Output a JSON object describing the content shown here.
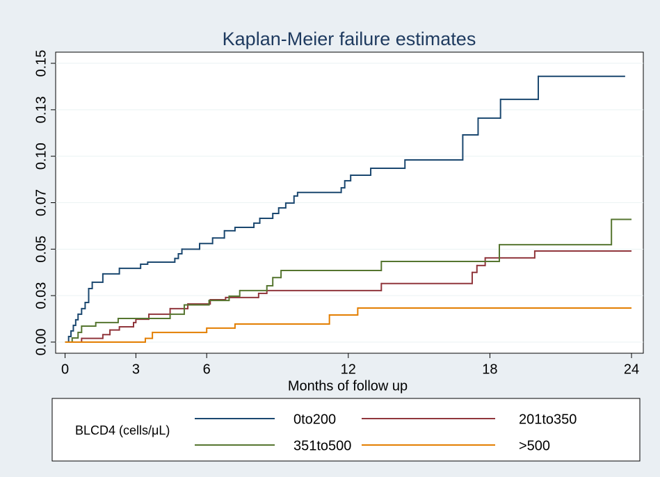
{
  "chart_data": {
    "type": "step",
    "title": "Kaplan-Meier failure estimates",
    "xlabel": "Months of follow up",
    "legend_title": "BLCD4 (cells/μL)",
    "legend": "bottom",
    "grid": true,
    "xlim": [
      -0.4,
      24.5
    ],
    "ylim": [
      -0.006,
      0.156
    ],
    "xticks": [
      0,
      3,
      6,
      12,
      18,
      24
    ],
    "yticks": [
      {
        "value": 0,
        "label": "0.00"
      },
      {
        "value": 0.025,
        "label": "0.03"
      },
      0.05,
      {
        "value": 0.075,
        "label": "0.07"
      },
      {
        "value": 0.1,
        "label": "0.10"
      },
      {
        "value": 0.125,
        "label": "0.13"
      },
      0.15
    ],
    "series": [
      {
        "name": "0to200",
        "color": "#1a476f",
        "x": [
          0,
          0.15,
          0.25,
          0.35,
          0.45,
          0.55,
          0.7,
          0.85,
          1.0,
          1.15,
          1.6,
          2.3,
          3.2,
          3.5,
          4.65,
          4.8,
          4.95,
          5.7,
          6.25,
          6.75,
          7.2,
          8.0,
          8.25,
          8.8,
          9.05,
          9.35,
          9.7,
          9.85,
          11.7,
          11.85,
          12.1,
          12.95,
          14.4,
          16.85,
          17.5,
          18.45,
          20.05,
          23.73
        ],
        "values": [
          0,
          0.003,
          0.006,
          0.009,
          0.012,
          0.015,
          0.018,
          0.0213,
          0.0288,
          0.0322,
          0.0367,
          0.0397,
          0.0419,
          0.043,
          0.045,
          0.0475,
          0.05,
          0.053,
          0.056,
          0.0599,
          0.0617,
          0.064,
          0.0666,
          0.0692,
          0.0722,
          0.0748,
          0.0786,
          0.0805,
          0.083,
          0.0868,
          0.0898,
          0.0935,
          0.098,
          0.1115,
          0.1205,
          0.1306,
          0.143,
          0.143
        ]
      },
      {
        "name": "201to350",
        "color": "#90353b",
        "x": [
          0,
          0.7,
          1.6,
          1.9,
          2.3,
          2.9,
          3.0,
          3.55,
          4.45,
          5.2,
          6.15,
          6.8,
          8.2,
          8.55,
          13.4,
          17.25,
          17.45,
          17.8,
          19.9,
          24
        ],
        "values": [
          0,
          0.002,
          0.004,
          0.0065,
          0.0082,
          0.0105,
          0.0123,
          0.015,
          0.018,
          0.0205,
          0.0228,
          0.024,
          0.0262,
          0.0277,
          0.0315,
          0.0375,
          0.0412,
          0.0453,
          0.049,
          0.049
        ]
      },
      {
        "name": "351to500",
        "color": "#55752f",
        "x": [
          0,
          0.3,
          0.55,
          0.7,
          1.3,
          2.25,
          4.45,
          5.05,
          6.1,
          6.95,
          7.4,
          8.55,
          8.8,
          9.15,
          13.4,
          18.4,
          23.15,
          24
        ],
        "values": [
          0,
          0.0022,
          0.0052,
          0.0086,
          0.0105,
          0.0127,
          0.015,
          0.02,
          0.0224,
          0.0247,
          0.0277,
          0.0303,
          0.0347,
          0.0385,
          0.0434,
          0.0524,
          0.066,
          0.066
        ]
      },
      {
        "name": ">500",
        "color": "#e37e00",
        "x": [
          0,
          3.4,
          3.7,
          6.0,
          7.2,
          11.2,
          12.4,
          24
        ],
        "values": [
          0,
          0.002,
          0.0052,
          0.0075,
          0.0097,
          0.0146,
          0.0183,
          0.0183
        ]
      }
    ]
  }
}
